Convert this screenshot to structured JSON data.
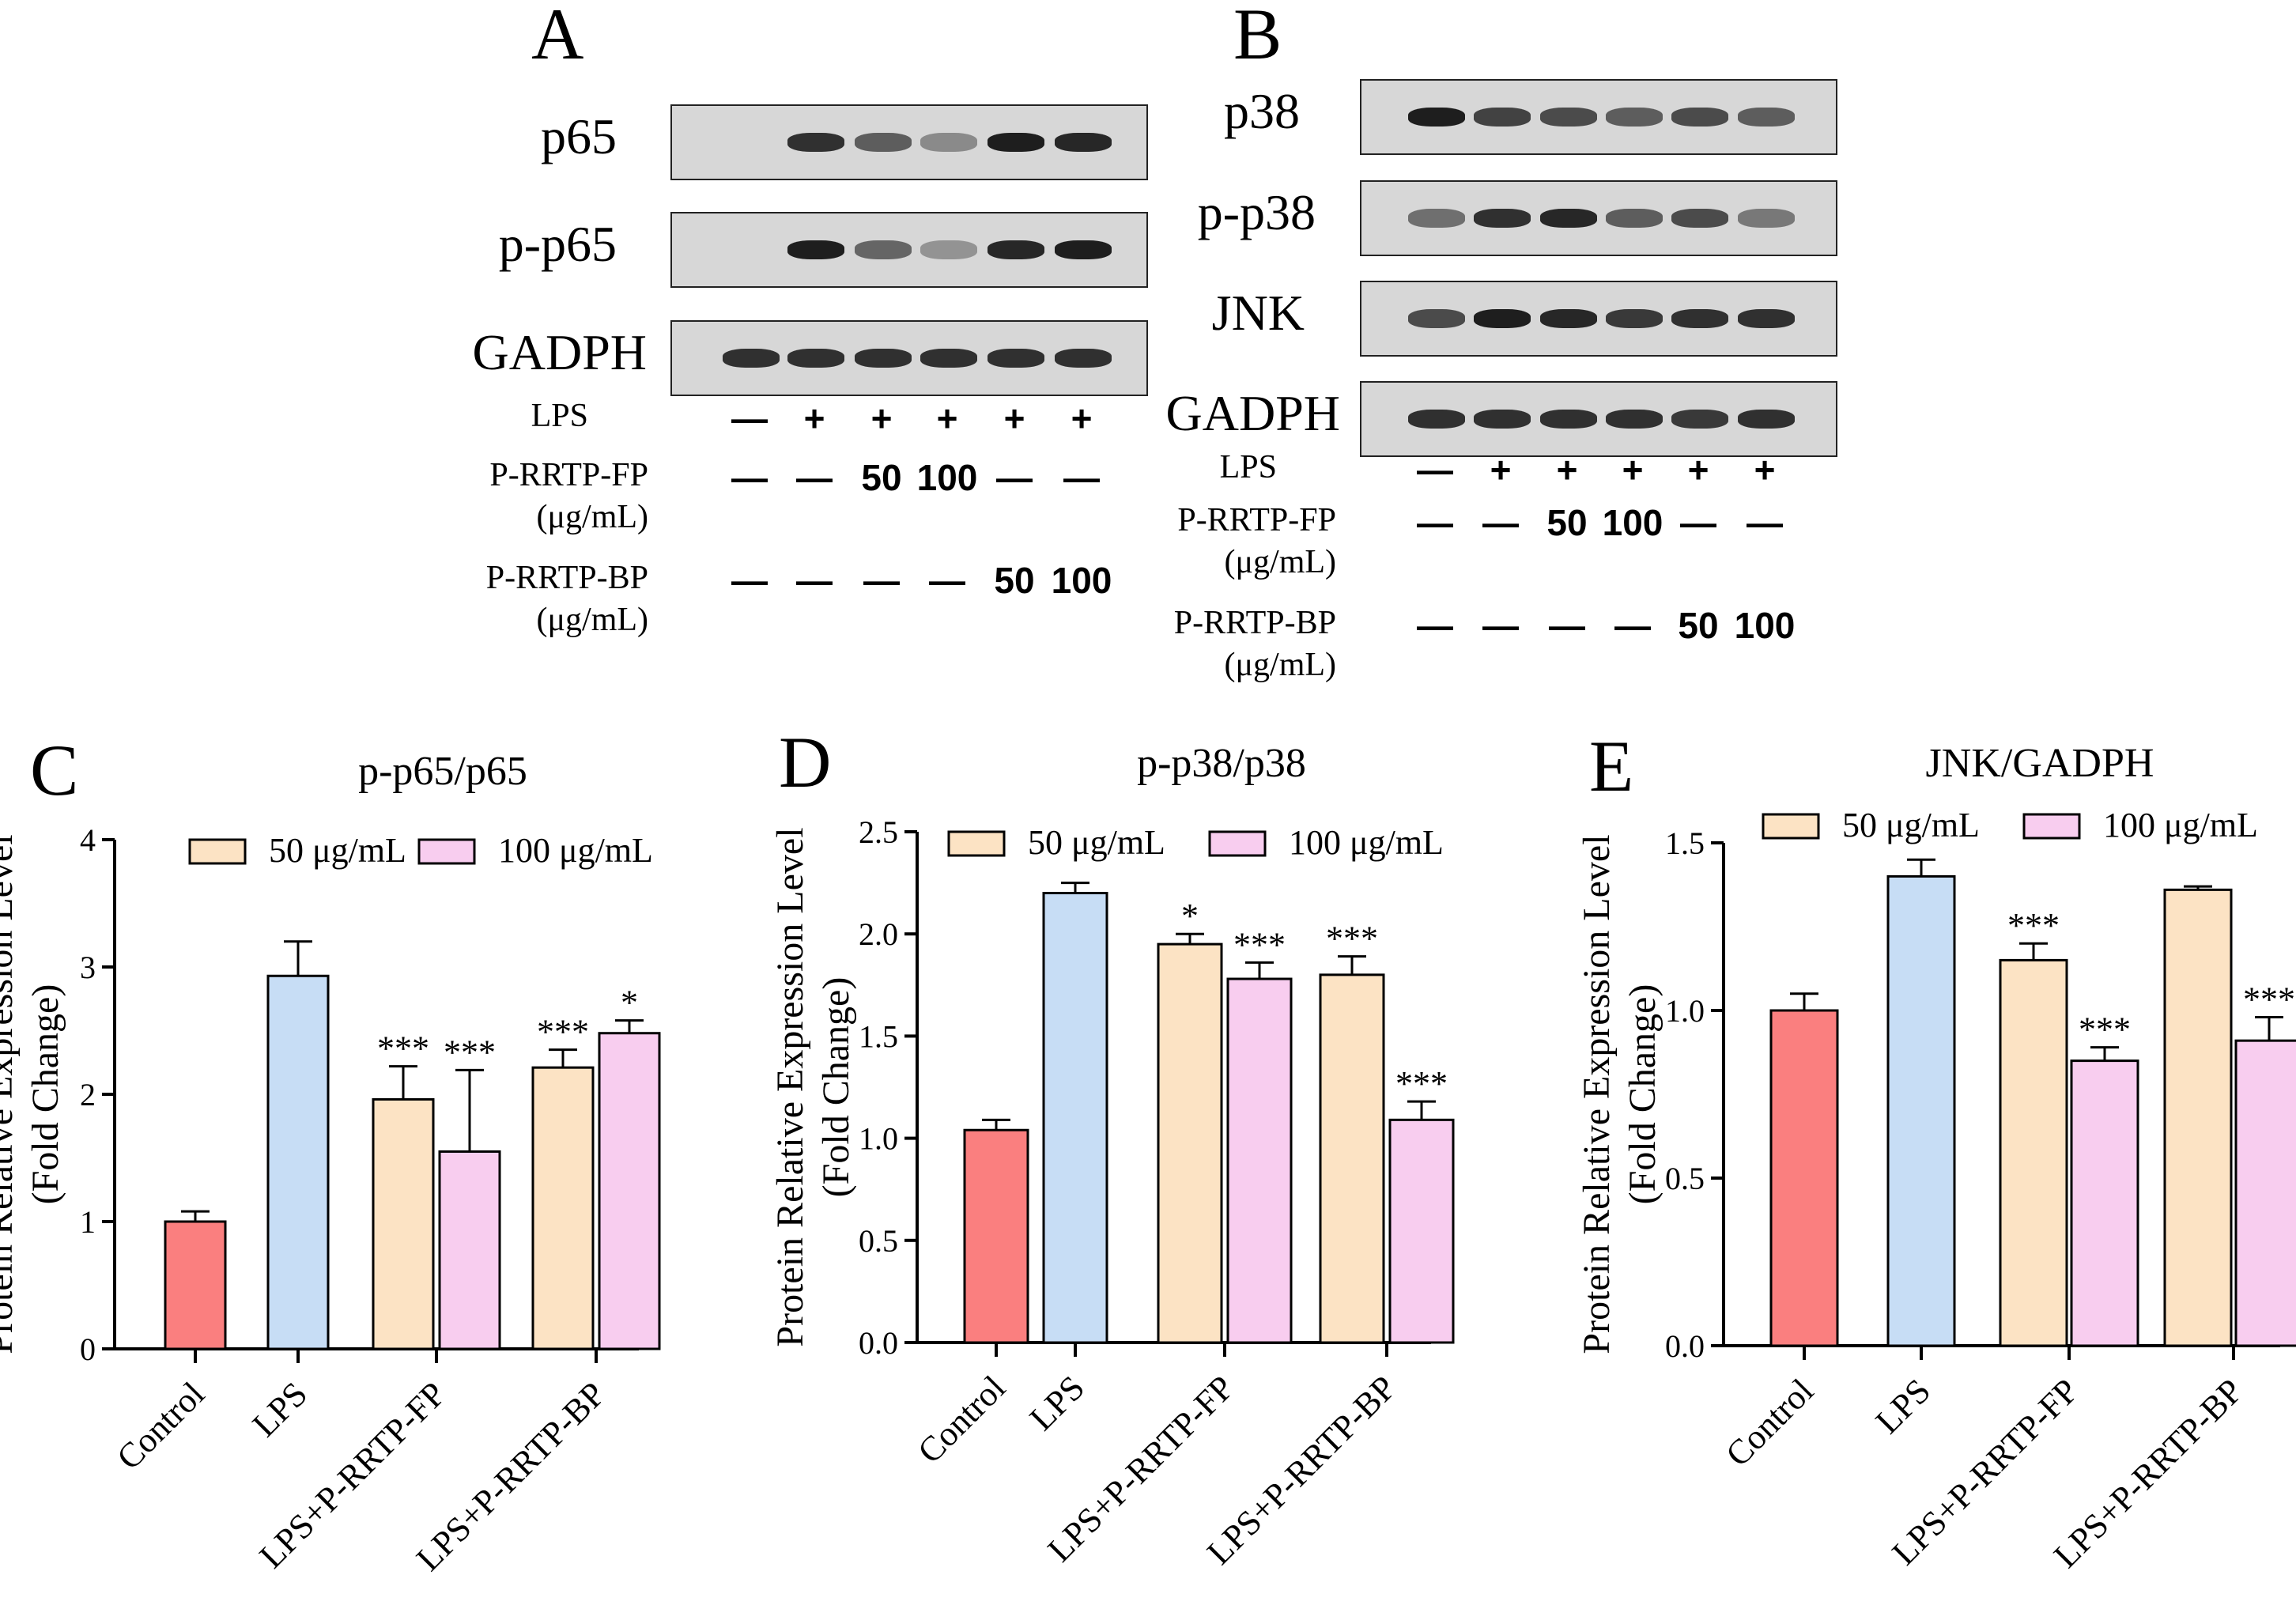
{
  "panels": {
    "A": {
      "letter": "A",
      "blots": [
        "p65",
        "p-p65",
        "GADPH"
      ],
      "conditions": [
        {
          "label": [
            "LPS"
          ],
          "values": [
            "—",
            "+",
            "+",
            "+",
            "+",
            "+"
          ]
        },
        {
          "label": [
            "P-RRTP-FP",
            "(μg/mL)"
          ],
          "values": [
            "—",
            "—",
            "50",
            "100",
            "—",
            "—"
          ]
        },
        {
          "label": [
            "P-RRTP-BP",
            "(μg/mL)"
          ],
          "values": [
            "—",
            "—",
            "—",
            "—",
            "50",
            "100"
          ]
        }
      ]
    },
    "B": {
      "letter": "B",
      "blots": [
        "p38",
        "p-p38",
        "JNK",
        "GADPH"
      ],
      "conditions": [
        {
          "label": [
            "LPS"
          ],
          "values": [
            "—",
            "+",
            "+",
            "+",
            "+",
            "+"
          ]
        },
        {
          "label": [
            "P-RRTP-FP",
            "(μg/mL)"
          ],
          "values": [
            "—",
            "—",
            "50",
            "100",
            "—",
            "—"
          ]
        },
        {
          "label": [
            "P-RRTP-BP",
            "(μg/mL)"
          ],
          "values": [
            "—",
            "—",
            "—",
            "—",
            "50",
            "100"
          ]
        }
      ]
    }
  },
  "colors": {
    "control": "#FA7F7F",
    "lps": "#C7DDF5",
    "dose50": "#FCE3C4",
    "dose100": "#F8CDEF"
  },
  "chart_data": [
    {
      "letter": "C",
      "type": "bar",
      "title": "p-p65/p65",
      "ylabel": [
        "Protein Relative Expression Level",
        "(Fold Change)"
      ],
      "ylim": [
        0,
        4
      ],
      "yticks": [
        "0",
        "1",
        "2",
        "3",
        "4"
      ],
      "categories": [
        "Control",
        "LPS",
        "LPS+P-RRTP-FP",
        "LPS+P-RRTP-BP"
      ],
      "legend": [
        "50 μg/mL",
        "100 μg/mL"
      ],
      "bars": [
        {
          "group": 0,
          "kind": "control",
          "value": 1.0,
          "err": 0.08,
          "sig": ""
        },
        {
          "group": 1,
          "kind": "lps",
          "value": 2.93,
          "err": 0.27,
          "sig": ""
        },
        {
          "group": 2,
          "kind": "dose50",
          "value": 1.96,
          "err": 0.26,
          "sig": "***"
        },
        {
          "group": 2,
          "kind": "dose100",
          "value": 1.55,
          "err": 0.64,
          "sig": "***"
        },
        {
          "group": 3,
          "kind": "dose50",
          "value": 2.21,
          "err": 0.14,
          "sig": "***"
        },
        {
          "group": 3,
          "kind": "dose100",
          "value": 2.48,
          "err": 0.1,
          "sig": "*"
        }
      ]
    },
    {
      "letter": "D",
      "type": "bar",
      "title": "p-p38/p38",
      "ylabel": [
        "Protein Relative Expression Level",
        "(Fold Change)"
      ],
      "ylim": [
        0,
        2.5
      ],
      "yticks": [
        "0.0",
        "0.5",
        "1.0",
        "1.5",
        "2.0",
        "2.5"
      ],
      "categories": [
        "Control",
        "LPS",
        "LPS+P-RRTP-FP",
        "LPS+P-RRTP-BP"
      ],
      "legend": [
        "50 μg/mL",
        "100 μg/mL"
      ],
      "bars": [
        {
          "group": 0,
          "kind": "control",
          "value": 1.04,
          "err": 0.05,
          "sig": ""
        },
        {
          "group": 1,
          "kind": "lps",
          "value": 2.2,
          "err": 0.05,
          "sig": ""
        },
        {
          "group": 2,
          "kind": "dose50",
          "value": 1.95,
          "err": 0.05,
          "sig": "*"
        },
        {
          "group": 2,
          "kind": "dose100",
          "value": 1.78,
          "err": 0.08,
          "sig": "***"
        },
        {
          "group": 3,
          "kind": "dose50",
          "value": 1.8,
          "err": 0.09,
          "sig": "***"
        },
        {
          "group": 3,
          "kind": "dose100",
          "value": 1.09,
          "err": 0.09,
          "sig": "***"
        }
      ]
    },
    {
      "letter": "E",
      "type": "bar",
      "title": "JNK/GADPH",
      "ylabel": [
        "Protein Relative Expression Level",
        "(Fold Change)"
      ],
      "ylim": [
        0,
        1.5
      ],
      "yticks": [
        "0.0",
        "0.5",
        "1.0",
        "1.5"
      ],
      "categories": [
        "Control",
        "LPS",
        "LPS+P-RRTP-FP",
        "LPS+P-RRTP-BP"
      ],
      "legend": [
        "50 μg/mL",
        "100 μg/mL"
      ],
      "bars": [
        {
          "group": 0,
          "kind": "control",
          "value": 1.0,
          "err": 0.05,
          "sig": ""
        },
        {
          "group": 1,
          "kind": "lps",
          "value": 1.4,
          "err": 0.05,
          "sig": ""
        },
        {
          "group": 2,
          "kind": "dose50",
          "value": 1.15,
          "err": 0.05,
          "sig": "***"
        },
        {
          "group": 2,
          "kind": "dose100",
          "value": 0.85,
          "err": 0.04,
          "sig": "***"
        },
        {
          "group": 3,
          "kind": "dose50",
          "value": 1.36,
          "err": 0.01,
          "sig": ""
        },
        {
          "group": 3,
          "kind": "dose100",
          "value": 0.91,
          "err": 0.07,
          "sig": "***"
        }
      ]
    }
  ]
}
